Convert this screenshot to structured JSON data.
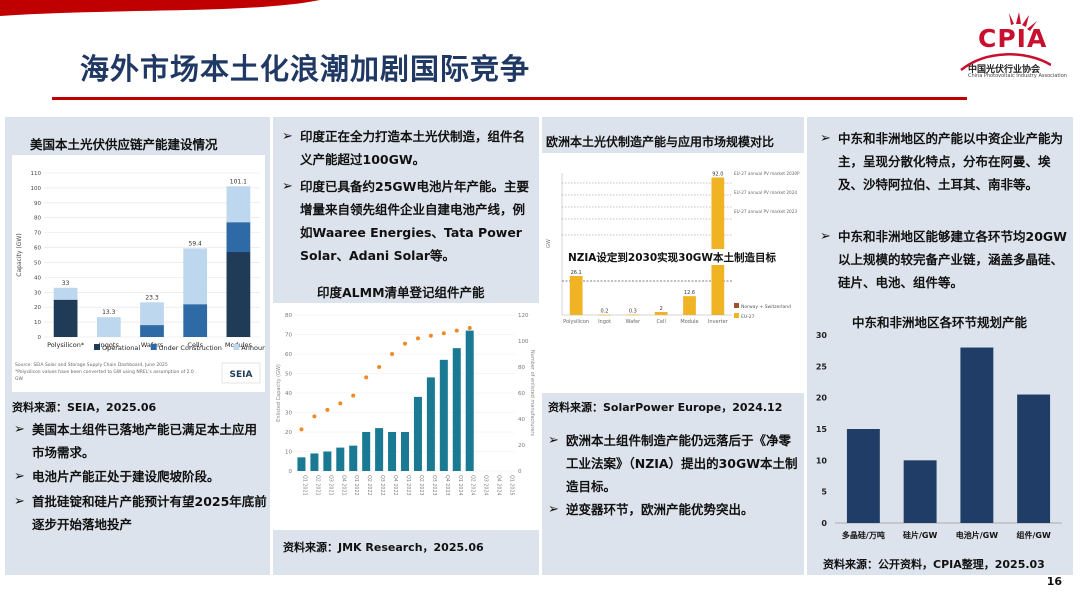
{
  "header": {
    "title": "海外市场本土化浪潮加剧国际竞争",
    "logo_text": "CPIA",
    "logo_cn": "中国光伏行业协会",
    "logo_en": "China Photovoltaic Industry Association",
    "page_number": "16"
  },
  "col1": {
    "chart_title": "美国本土光伏供应链产能建设情况",
    "source": "资料来源：SEIA，2025.06",
    "footnote1": "Source: SEIA Solar and Storage Supply Chain Dashboard, June 2025",
    "footnote2": "*Polysilicon values have been converted to GW using NREL's assumption of 2.0",
    "footnote3": "GW",
    "seia_logo": "SEIA",
    "bullets": [
      "美国本土组件已落地产能已满足本土应用市场需求。",
      "电池片产能正处于建设爬坡阶段。",
      "首批硅锭和硅片产能预计有望2025年底前逐步开始落地投产"
    ]
  },
  "col2": {
    "bullets": [
      "印度正在全力打造本土光伏制造，组件名义产能超过100GW。",
      "印度已具备约25GW电池片年产能。主要增量来自领先组件企业自建电池产线，例如Waaree Energies、Tata Power Solar、Adani Solar等。"
    ],
    "chart_title": "印度ALMM清单登记组件产能",
    "source": "资料来源：JMK Research，2025.06",
    "y_left_label": "Enlisted Capacity (GW)",
    "y_right_label": "Number of enlisted manufacturers"
  },
  "col3": {
    "chart_title": "欧洲本土光伏制造产能与应用市场规模对比",
    "overlay_text": "NZIA设定到2030实现30GW本土制造目标",
    "source": "资料来源：SolarPower Europe，2024.12",
    "legend_norway": "Norway + Switzerland",
    "legend_eu": "EU-27",
    "bullets": [
      "欧洲本土组件制造产能仍远落后于《净零工业法案》（NZIA）提出的30GW本土制造目标。",
      "逆变器环节，欧洲产能优势突出。"
    ]
  },
  "col4": {
    "bullets": [
      "中东和非洲地区的产能以中资企业产能为主，呈现分散化特点，分布在阿曼、埃及、沙特阿拉伯、土耳其、南非等。",
      "中东和非洲地区能够建立各环节均20GW以上规模的较完备产业链，涵盖多晶硅、硅片、电池、组件等。"
    ],
    "chart_title": "中东和非洲地区各环节规划产能",
    "source": "资料来源：公开资料，CPIA整理，2025.03"
  },
  "chart_data": [
    {
      "id": "us",
      "type": "bar",
      "stacked": true,
      "title": "美国本土光伏供应链产能建设情况",
      "ylabel": "Capacity (GW)",
      "ylim": [
        0,
        110
      ],
      "yticks": [
        0,
        10,
        20,
        30,
        40,
        50,
        60,
        70,
        80,
        90,
        100,
        110
      ],
      "categories": [
        "Polysilicon*",
        "Ingots",
        "Wafers",
        "Cells",
        "Modules"
      ],
      "totals": [
        33,
        13.3,
        23.3,
        59.4,
        101.1
      ],
      "total_labels": [
        "33",
        "13.3",
        "23.3",
        "59.4",
        "101.1"
      ],
      "series": [
        {
          "name": "Operational",
          "color": "#1f3b57",
          "values": [
            25,
            0,
            0,
            0,
            57
          ]
        },
        {
          "name": "Under Construction",
          "color": "#2e6aa6",
          "values": [
            0,
            0,
            8,
            22,
            20
          ]
        },
        {
          "name": "Announced",
          "color": "#bcd7ee",
          "values": [
            8,
            13.3,
            15.3,
            37.4,
            24.1
          ]
        }
      ]
    },
    {
      "id": "india",
      "type": "bar+scatter",
      "title": "印度ALMM清单登记组件产能",
      "ylim_left": [
        0,
        80
      ],
      "yticks_left": [
        0,
        10,
        20,
        30,
        40,
        50,
        60,
        70,
        80
      ],
      "ylim_right": [
        0,
        120
      ],
      "yticks_right": [
        0,
        20,
        40,
        60,
        80,
        100,
        120
      ],
      "categories": [
        "Q1 2021",
        "Q2 2021",
        "Q3 2021",
        "Q4 2021",
        "Q1 2022",
        "Q2 2022",
        "Q3 2022",
        "Q4 2022",
        "Q1 2023",
        "Q2 2023",
        "Q3 2023",
        "Q4 2023",
        "Q1 2024",
        "Q2 2024",
        "Q3 2024",
        "Q4 2024",
        "Q1 2025"
      ],
      "bar_color": "#1b7a93",
      "dot_color": "#f08a24",
      "capacity": [
        7,
        9,
        10,
        12,
        13,
        20,
        22,
        20,
        20,
        38,
        48,
        57,
        63,
        72,
        0,
        0,
        0
      ],
      "manufacturers": [
        32,
        42,
        47,
        52,
        58,
        72,
        80,
        90,
        98,
        102,
        104,
        106,
        108,
        110,
        0,
        0,
        0
      ]
    },
    {
      "id": "europe",
      "type": "bar",
      "title": "欧洲本土光伏制造产能与应用市场规模对比",
      "ylabel": "GW",
      "categories": [
        "Polysilicon",
        "Ingot",
        "Wafer",
        "Cell",
        "Module",
        "Inverter"
      ],
      "values": [
        26.1,
        0.2,
        0.3,
        2,
        12.6,
        92.0
      ],
      "value_labels": [
        "26.1",
        "0.2",
        "0.3",
        "2",
        "12.6",
        "92.0"
      ],
      "color": "#f0b323",
      "reference_lines": [
        "EU-27 annual PV market 2030P",
        "EU-27 annual PV market 2024",
        "EU-27 annual PV market 2023"
      ]
    },
    {
      "id": "mea",
      "type": "bar",
      "title": "中东和非洲地区各环节规划产能",
      "categories": [
        "多晶硅/万吨",
        "硅片/GW",
        "电池片/GW",
        "组件/GW"
      ],
      "values": [
        15,
        10,
        28,
        20.5
      ],
      "ylim": [
        0,
        30
      ],
      "yticks": [
        0,
        5,
        10,
        15,
        20,
        25,
        30
      ],
      "color": "#1f3d66"
    }
  ]
}
